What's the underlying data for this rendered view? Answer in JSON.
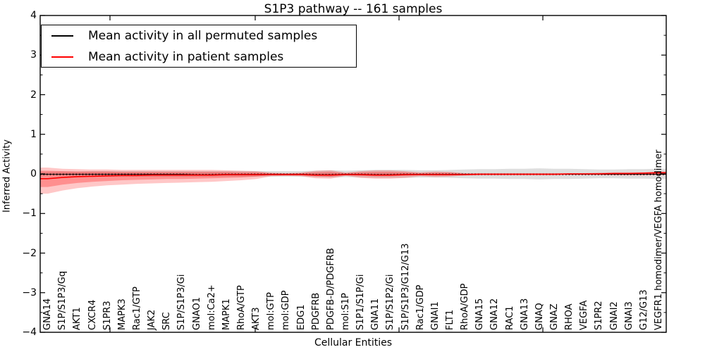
{
  "title": "S1P3 pathway -- 161 samples",
  "legend": {
    "items": [
      {
        "label": "Mean activity in all permuted samples",
        "color": "#000000"
      },
      {
        "label": "Mean activity in patient samples",
        "color": "#ff0000"
      }
    ]
  },
  "chart_data": {
    "type": "line",
    "title": "S1P3 pathway -- 161 samples",
    "xlabel": "Cellular Entities",
    "ylabel": "Inferred Activity",
    "ylim": [
      -4,
      4
    ],
    "grid": false,
    "legend_position": "upper left",
    "y_ticks": [
      {
        "value": 4,
        "label": "4"
      },
      {
        "value": 3,
        "label": "3"
      },
      {
        "value": 2,
        "label": "2"
      },
      {
        "value": 1,
        "label": "1"
      },
      {
        "value": 0,
        "label": "0"
      },
      {
        "value": -1,
        "label": "−1"
      },
      {
        "value": -2,
        "label": "−2"
      },
      {
        "value": -3,
        "label": "−3"
      },
      {
        "value": -4,
        "label": "−4"
      }
    ],
    "y_minor_step": 0.5,
    "categories": [
      "GNA14",
      "S1P/S1P3/Gq",
      "AKT1",
      "CXCR4",
      "S1PR3",
      "MAPK3",
      "Rac1/GTP",
      "JAK2",
      "SRC",
      "S1P/S1P3/Gi",
      "GNAO1",
      "mol:Ca2+",
      "MAPK1",
      "RhoA/GTP",
      "AKT3",
      "mol:GTP",
      "mol:GDP",
      "EDG1",
      "PDGFRB",
      "PDGFB-D/PDGFRB",
      "mol:S1P",
      "S1P1/S1P/Gi",
      "GNA11",
      "S1P/S1P2/Gi",
      "S1P/S1P3/G12/G13",
      "Rac1/GDP",
      "GNAI1",
      "FLT1",
      "RhoA/GDP",
      "GNA15",
      "GNA12",
      "RAC1",
      "GNA13",
      "GNAQ",
      "GNAZ",
      "RHOA",
      "VEGFA",
      "S1PR2",
      "GNAI2",
      "GNAI3",
      "G12/G13",
      "VEGFR1 homodimer/VEGFA homodimer"
    ],
    "series": [
      {
        "name": "Mean activity in all permuted samples",
        "color": "#000000",
        "style": "solid-dotted",
        "values": [
          -0.01,
          -0.01,
          -0.01,
          -0.01,
          -0.01,
          -0.01,
          -0.01,
          -0.01,
          -0.01,
          -0.01,
          -0.02,
          -0.02,
          -0.01,
          -0.01,
          -0.01,
          -0.01,
          -0.01,
          -0.01,
          -0.02,
          -0.02,
          -0.01,
          -0.01,
          -0.02,
          -0.02,
          -0.01,
          -0.01,
          -0.01,
          -0.01,
          -0.01,
          -0.01,
          -0.01,
          -0.01,
          -0.01,
          -0.01,
          -0.01,
          -0.01,
          -0.01,
          -0.01,
          -0.01,
          -0.01,
          -0.01,
          -0.01
        ]
      },
      {
        "name": "Mean activity in patient samples",
        "color": "#ff0000",
        "style": "solid",
        "values": [
          -0.12,
          -0.09,
          -0.07,
          -0.06,
          -0.05,
          -0.04,
          -0.04,
          -0.03,
          -0.03,
          -0.03,
          -0.03,
          -0.03,
          -0.02,
          -0.02,
          -0.02,
          -0.02,
          -0.02,
          -0.02,
          -0.03,
          -0.03,
          -0.02,
          -0.02,
          -0.03,
          -0.03,
          -0.02,
          -0.02,
          -0.02,
          -0.02,
          -0.02,
          -0.01,
          -0.01,
          -0.01,
          -0.01,
          -0.01,
          -0.01,
          0.0,
          0.0,
          0.0,
          0.01,
          0.01,
          0.02,
          0.03
        ]
      }
    ],
    "bands": [
      {
        "name": "permuted-activity-spread",
        "color": "#888888",
        "opacity": 0.28,
        "top": [
          0.05,
          0.06,
          0.06,
          0.07,
          0.07,
          0.07,
          0.07,
          0.07,
          0.07,
          0.07,
          0.07,
          0.07,
          0.07,
          0.07,
          0.07,
          0.07,
          0.07,
          0.07,
          0.08,
          0.09,
          0.08,
          0.09,
          0.1,
          0.1,
          0.1,
          0.09,
          0.09,
          0.1,
          0.11,
          0.12,
          0.12,
          0.13,
          0.13,
          0.14,
          0.13,
          0.13,
          0.12,
          0.11,
          0.11,
          0.12,
          0.12,
          0.13
        ],
        "bottom": [
          -0.05,
          -0.06,
          -0.06,
          -0.07,
          -0.07,
          -0.07,
          -0.07,
          -0.07,
          -0.07,
          -0.07,
          -0.07,
          -0.07,
          -0.07,
          -0.07,
          -0.07,
          -0.07,
          -0.07,
          -0.07,
          -0.08,
          -0.09,
          -0.08,
          -0.09,
          -0.1,
          -0.1,
          -0.1,
          -0.09,
          -0.09,
          -0.1,
          -0.11,
          -0.12,
          -0.12,
          -0.13,
          -0.13,
          -0.14,
          -0.13,
          -0.13,
          -0.12,
          -0.11,
          -0.11,
          -0.12,
          -0.12,
          -0.13
        ]
      },
      {
        "name": "patient-activity-spread-outer",
        "color": "#ff0000",
        "opacity": 0.22,
        "top": [
          0.16,
          0.13,
          0.12,
          0.11,
          0.11,
          0.1,
          0.1,
          0.1,
          0.1,
          0.1,
          0.1,
          0.1,
          0.09,
          0.08,
          0.07,
          0.03,
          0.02,
          0.03,
          0.08,
          0.09,
          0.03,
          0.07,
          0.09,
          0.09,
          0.07,
          0.04,
          0.06,
          0.05,
          0.02,
          0.02,
          0.02,
          0.02,
          0.02,
          0.02,
          0.02,
          0.02,
          0.02,
          0.03,
          0.04,
          0.04,
          0.04,
          0.06
        ],
        "bottom": [
          -0.5,
          -0.42,
          -0.36,
          -0.32,
          -0.29,
          -0.27,
          -0.25,
          -0.24,
          -0.23,
          -0.22,
          -0.21,
          -0.2,
          -0.18,
          -0.16,
          -0.13,
          -0.06,
          -0.05,
          -0.06,
          -0.11,
          -0.12,
          -0.05,
          -0.1,
          -0.12,
          -0.12,
          -0.1,
          -0.06,
          -0.08,
          -0.07,
          -0.04,
          -0.03,
          -0.03,
          -0.03,
          -0.03,
          -0.03,
          -0.03,
          -0.03,
          -0.03,
          -0.03,
          -0.04,
          -0.04,
          -0.04,
          -0.03
        ]
      },
      {
        "name": "patient-activity-spread-inner",
        "color": "#ff0000",
        "opacity": 0.28,
        "top": [
          0.08,
          0.07,
          0.06,
          0.06,
          0.06,
          0.05,
          0.05,
          0.05,
          0.05,
          0.05,
          0.05,
          0.05,
          0.05,
          0.04,
          0.04,
          0.02,
          0.01,
          0.02,
          0.04,
          0.05,
          0.02,
          0.04,
          0.05,
          0.05,
          0.04,
          0.02,
          0.03,
          0.03,
          0.01,
          0.01,
          0.01,
          0.01,
          0.01,
          0.01,
          0.01,
          0.01,
          0.01,
          0.02,
          0.02,
          0.02,
          0.02,
          0.03
        ],
        "bottom": [
          -0.33,
          -0.27,
          -0.23,
          -0.2,
          -0.18,
          -0.16,
          -0.15,
          -0.14,
          -0.13,
          -0.13,
          -0.12,
          -0.11,
          -0.1,
          -0.09,
          -0.07,
          -0.03,
          -0.02,
          -0.03,
          -0.06,
          -0.07,
          -0.03,
          -0.05,
          -0.06,
          -0.06,
          -0.05,
          -0.03,
          -0.04,
          -0.04,
          -0.02,
          -0.02,
          -0.02,
          -0.02,
          -0.02,
          -0.02,
          -0.02,
          -0.02,
          -0.02,
          -0.02,
          -0.02,
          -0.02,
          -0.02,
          -0.02
        ]
      }
    ]
  }
}
